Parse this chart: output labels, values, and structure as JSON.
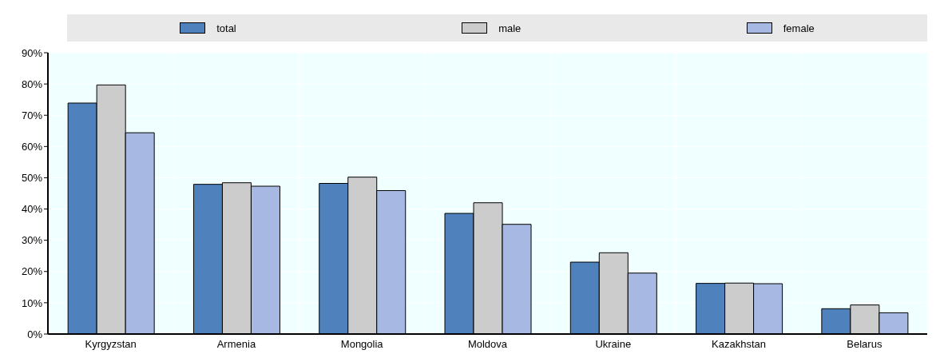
{
  "chart_data": {
    "type": "bar",
    "categories": [
      "Kyrgyzstan",
      "Armenia",
      "Mongolia",
      "Moldova",
      "Ukraine",
      "Kazakhstan",
      "Belarus"
    ],
    "series": [
      {
        "name": "total",
        "color": "#4f81bd",
        "values": [
          73.9,
          47.9,
          48.2,
          38.6,
          23.0,
          16.2,
          8.1
        ]
      },
      {
        "name": "male",
        "color": "#cccccc",
        "values": [
          79.7,
          48.4,
          50.2,
          42.0,
          26.0,
          16.3,
          9.3
        ]
      },
      {
        "name": "female",
        "color": "#a7b9e3",
        "values": [
          64.4,
          47.3,
          45.9,
          35.1,
          19.5,
          16.1,
          6.8
        ]
      }
    ],
    "ylim": [
      0,
      90
    ],
    "yticks": [
      {
        "value": 0,
        "label": "0%"
      },
      {
        "value": 10,
        "label": "10%"
      },
      {
        "value": 20,
        "label": "20%"
      },
      {
        "value": 30,
        "label": "30%"
      },
      {
        "value": 40,
        "label": "40%"
      },
      {
        "value": 50,
        "label": "50%"
      },
      {
        "value": 60,
        "label": "60%"
      },
      {
        "value": 70,
        "label": "70%"
      },
      {
        "value": 80,
        "label": "80%"
      },
      {
        "value": 90,
        "label": "90%"
      }
    ],
    "grid": true,
    "legend": "top"
  }
}
